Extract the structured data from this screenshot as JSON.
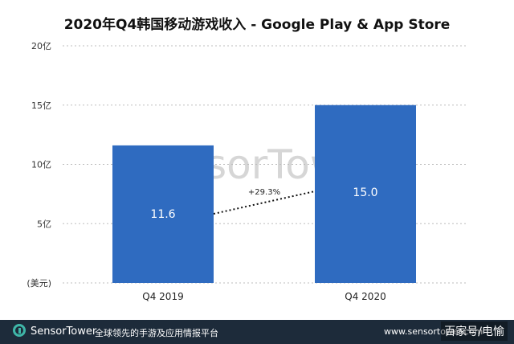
{
  "chart_data": {
    "type": "bar",
    "title": "2020年Q4韩国移动游戏收入 - Google Play & App Store",
    "categories": [
      "Q4 2019",
      "Q4 2020"
    ],
    "values": [
      11.6,
      15.0
    ],
    "data_labels": [
      "11.6",
      "15.0"
    ],
    "yticks": [
      {
        "value": 0,
        "label": "(美元)"
      },
      {
        "value": 5,
        "label": "5亿"
      },
      {
        "value": 10,
        "label": "10亿"
      },
      {
        "value": 15,
        "label": "15亿"
      },
      {
        "value": 20,
        "label": "20亿"
      }
    ],
    "ylim": [
      0,
      20
    ],
    "grid": true,
    "bar_color": "#2f6bc0",
    "annotation": "+29.3%",
    "watermark": "SensorTower"
  },
  "footer": {
    "brand": "SensorTower",
    "tagline": "全球领先的手游及应用情报平台",
    "site": "www.sensortower.com",
    "overlay": "百家号/电愉"
  }
}
